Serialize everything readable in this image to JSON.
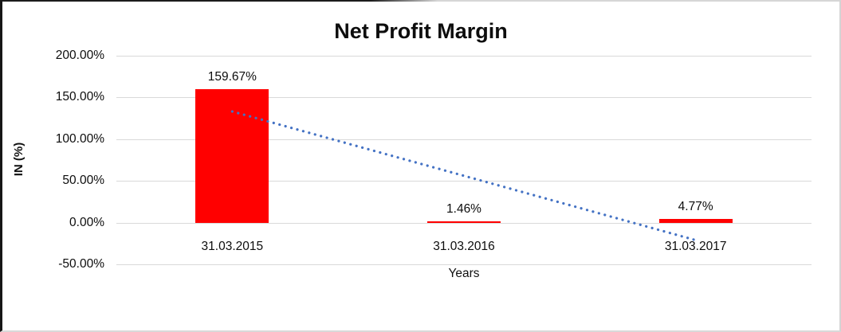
{
  "chart_data": {
    "type": "bar",
    "title": "Net Profit Margin",
    "xlabel": "Years",
    "ylabel": "IN (%)",
    "categories": [
      "31.03.2015",
      "31.03.2016",
      "31.03.2017"
    ],
    "values": [
      159.67,
      1.46,
      4.77
    ],
    "value_labels": [
      "159.67%",
      "1.46%",
      "4.77%"
    ],
    "y_ticks": [
      {
        "value": 200,
        "label": "200.00%"
      },
      {
        "value": 150,
        "label": "150.00%"
      },
      {
        "value": 100,
        "label": "100.00%"
      },
      {
        "value": 50,
        "label": "50.00%"
      },
      {
        "value": 0,
        "label": "0.00%"
      },
      {
        "value": -50,
        "label": "-50.00%"
      }
    ],
    "ylim": [
      -50,
      200
    ],
    "grid": "horizontal-only",
    "legend": "none",
    "colors": {
      "bar": "#FF0000",
      "trendline": "#4472C4",
      "gridline": "#D9D9D9",
      "text": "#0D0D0D"
    },
    "trendline": {
      "type": "linear",
      "style": "dotted",
      "start_value": 133.2,
      "end_value": -21.0
    }
  }
}
